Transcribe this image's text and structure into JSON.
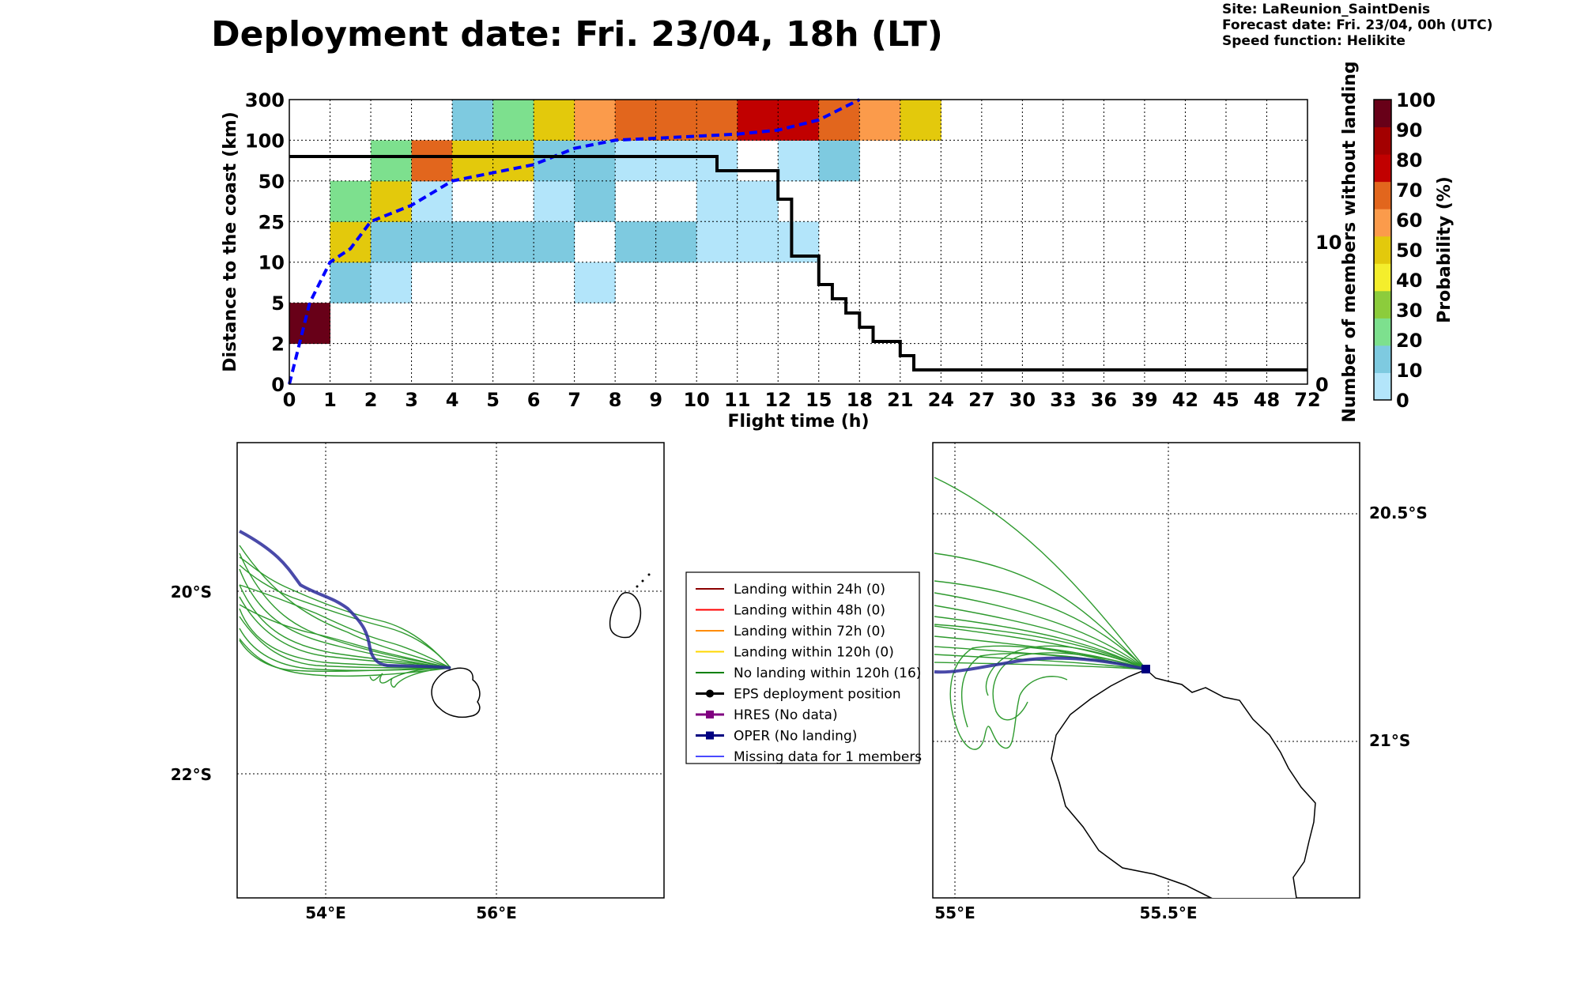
{
  "header": {
    "title": "Deployment date: Fri. 23/04, 18h (LT)",
    "site": "Site: LaReunion_SaintDenis",
    "forecast_date": "Forecast date: Fri. 23/04, 00h (UTC)",
    "speed_function": "Speed function: Helikite"
  },
  "colorbar": {
    "label": "Probability (%)",
    "ticks": [
      "0",
      "10",
      "20",
      "30",
      "40",
      "50",
      "60",
      "70",
      "80",
      "90",
      "100"
    ],
    "colors": [
      "#b3e5fa",
      "#7ecae0",
      "#7de08e",
      "#8ccc3c",
      "#f4ee2c",
      "#e3c90c",
      "#fb9b4b",
      "#e2661d",
      "#c10000",
      "#a30000",
      "#680018"
    ]
  },
  "chart_data": [
    {
      "type": "heatmap",
      "title": "Deployment date: Fri. 23/04, 18h (LT)",
      "xlabel": "Flight time (h)",
      "ylabel": "Distance to the coast (km)",
      "ylabel_right": "Number of members without landing",
      "x_ticks": [
        "0",
        "1",
        "2",
        "3",
        "4",
        "5",
        "6",
        "7",
        "8",
        "9",
        "10",
        "11",
        "12",
        "15",
        "18",
        "21",
        "24",
        "27",
        "30",
        "33",
        "36",
        "39",
        "42",
        "45",
        "48",
        "72"
      ],
      "y_ticks": [
        "0",
        "2",
        "5",
        "10",
        "25",
        "50",
        "100",
        "300"
      ],
      "y_right_ticks": [
        "0",
        "10"
      ],
      "grid": true,
      "note": "cells: [x_bin_start_index, y_bin_start_index, probability_percent]; x bins are flight-time intervals between consecutive x_ticks, y bins between consecutive y_ticks",
      "cells": [
        [
          0,
          1,
          100
        ],
        [
          1,
          2,
          10
        ],
        [
          2,
          2,
          0
        ],
        [
          7,
          2,
          0
        ],
        [
          1,
          3,
          50
        ],
        [
          2,
          3,
          10
        ],
        [
          3,
          3,
          10
        ],
        [
          4,
          3,
          10
        ],
        [
          5,
          3,
          10
        ],
        [
          6,
          3,
          10
        ],
        [
          8,
          3,
          10
        ],
        [
          9,
          3,
          10
        ],
        [
          10,
          3,
          0
        ],
        [
          11,
          3,
          0
        ],
        [
          12,
          3,
          0
        ],
        [
          1,
          4,
          20
        ],
        [
          2,
          4,
          50
        ],
        [
          3,
          4,
          0
        ],
        [
          6,
          4,
          0
        ],
        [
          7,
          4,
          10
        ],
        [
          10,
          4,
          0
        ],
        [
          11,
          4,
          0
        ],
        [
          2,
          5,
          20
        ],
        [
          3,
          5,
          70
        ],
        [
          4,
          5,
          50
        ],
        [
          5,
          5,
          50
        ],
        [
          6,
          5,
          10
        ],
        [
          7,
          5,
          10
        ],
        [
          8,
          5,
          0
        ],
        [
          9,
          5,
          0
        ],
        [
          10,
          5,
          0
        ],
        [
          12,
          5,
          0
        ],
        [
          13,
          5,
          10
        ],
        [
          4,
          6,
          10
        ],
        [
          5,
          6,
          20
        ],
        [
          6,
          6,
          50
        ],
        [
          7,
          6,
          60
        ],
        [
          8,
          6,
          70
        ],
        [
          9,
          6,
          70
        ],
        [
          10,
          6,
          70
        ],
        [
          11,
          6,
          80
        ],
        [
          12,
          6,
          80
        ],
        [
          13,
          6,
          70
        ],
        [
          14,
          6,
          60
        ],
        [
          15,
          6,
          50
        ]
      ],
      "median_distance_km": {
        "x_hours": [
          0,
          0.5,
          1,
          1.5,
          2,
          3,
          4,
          5,
          6,
          7,
          8,
          9,
          10,
          11,
          12,
          15,
          18
        ],
        "y_km": [
          0,
          5,
          10,
          15,
          25,
          35,
          50,
          60,
          70,
          90,
          100,
          110,
          120,
          130,
          150,
          200,
          300
        ]
      },
      "members_without_landing": {
        "x_hours": [
          0,
          10.5,
          10.5,
          12,
          12,
          13,
          13,
          15,
          15,
          16,
          16,
          17,
          17,
          18,
          18,
          19,
          19,
          21,
          21,
          22,
          22,
          72
        ],
        "y_members": [
          16,
          16,
          15,
          15,
          13,
          13,
          9,
          9,
          7,
          7,
          6,
          6,
          5,
          5,
          4,
          4,
          3,
          3,
          2,
          2,
          1,
          1
        ]
      }
    }
  ],
  "maps": {
    "left": {
      "lat_labels": [
        "20°S",
        "22°S"
      ],
      "lon_labels": [
        "54°E",
        "56°E"
      ]
    },
    "right": {
      "lat_labels": [
        "20.5°S",
        "21°S"
      ],
      "lon_labels": [
        "55°E",
        "55.5°E"
      ]
    }
  },
  "legend": {
    "items": [
      {
        "label": "Landing within 24h (0)",
        "color": "#8b0000",
        "marker": "none"
      },
      {
        "label": "Landing within 48h (0)",
        "color": "#ff0000",
        "marker": "none"
      },
      {
        "label": "Landing within 72h (0)",
        "color": "#ff8c00",
        "marker": "none"
      },
      {
        "label": "Landing within 120h (0)",
        "color": "#ffd700",
        "marker": "none"
      },
      {
        "label": "No landing within 120h (16)",
        "color": "#008000",
        "marker": "none"
      },
      {
        "label": "EPS deployment position",
        "color": "#000000",
        "marker": "circle"
      },
      {
        "label": "HRES (No data)",
        "color": "#800080",
        "marker": "square"
      },
      {
        "label": "OPER (No landing)",
        "color": "#000080",
        "marker": "square"
      },
      {
        "label": "Missing data for 1 members",
        "color": "#4a4aff",
        "marker": "none"
      }
    ]
  }
}
